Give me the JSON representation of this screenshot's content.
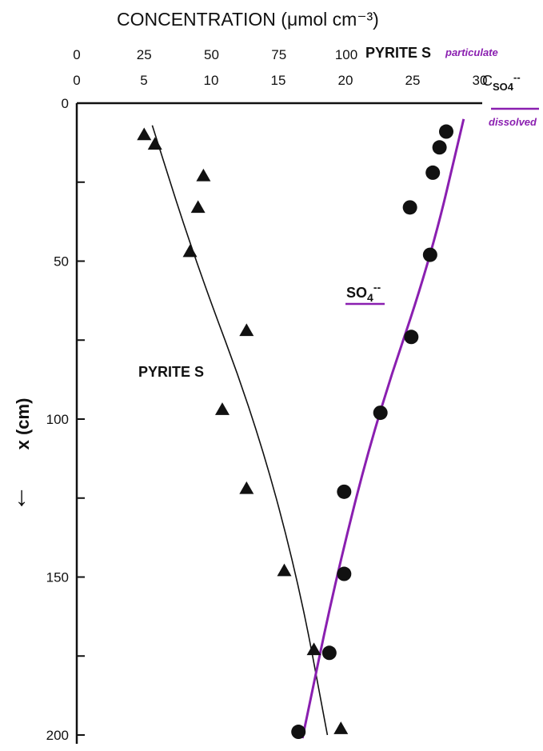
{
  "chart_data": {
    "type": "scatter",
    "title": "CONCENTRATION (μmol cm⁻³)",
    "ylabel": "x (cm)",
    "y_axis_arrow": "↓",
    "y_inverted": true,
    "ylim": [
      0,
      200
    ],
    "y_ticks": [
      "0",
      "50",
      "100",
      "150",
      "200"
    ],
    "y_tick_values": [
      0,
      50,
      100,
      150,
      200
    ],
    "top_axis_pyrite": {
      "label": "PYRITE S",
      "sublabel": "particulate",
      "ticks": [
        "0",
        "25",
        "50",
        "75",
        "100"
      ],
      "tick_values": [
        0,
        25,
        50,
        75,
        100
      ]
    },
    "top_axis_sulfate": {
      "label_main": "C",
      "label_sub": "SO",
      "label_sub_suffix": "4",
      "label_sup": "--",
      "sublabel": "dissolved",
      "ticks": [
        "0",
        "5",
        "10",
        "15",
        "20",
        "25",
        "30"
      ],
      "tick_values": [
        0,
        5,
        10,
        15,
        20,
        25,
        30
      ]
    },
    "series": [
      {
        "name": "PYRITE S",
        "marker": "triangle",
        "color": "#111111",
        "x_axis": "pyrite",
        "points": [
          {
            "x": 25,
            "y": 10
          },
          {
            "x": 29,
            "y": 13
          },
          {
            "x": 47,
            "y": 23
          },
          {
            "x": 45,
            "y": 33
          },
          {
            "x": 42,
            "y": 47
          },
          {
            "x": 63,
            "y": 72
          },
          {
            "x": 54,
            "y": 97
          },
          {
            "x": 63,
            "y": 122
          },
          {
            "x": 77,
            "y": 148
          },
          {
            "x": 88,
            "y": 173
          },
          {
            "x": 98,
            "y": 198
          }
        ],
        "fit": [
          {
            "x": 28,
            "y": 7
          },
          {
            "x": 44,
            "y": 50
          },
          {
            "x": 66,
            "y": 100
          },
          {
            "x": 82,
            "y": 150
          },
          {
            "x": 93,
            "y": 200
          }
        ]
      },
      {
        "name": "SO4--",
        "name_main": "SO",
        "name_sub": "4",
        "name_sup": "--",
        "marker": "circle",
        "color": "#111111",
        "fit_color": "#8a1fb0",
        "x_axis": "sulfate",
        "points": [
          {
            "x": 27.5,
            "y": 9
          },
          {
            "x": 27,
            "y": 14
          },
          {
            "x": 26.5,
            "y": 22
          },
          {
            "x": 24.8,
            "y": 33
          },
          {
            "x": 26.3,
            "y": 48
          },
          {
            "x": 24.9,
            "y": 74
          },
          {
            "x": 22.6,
            "y": 98
          },
          {
            "x": 19.9,
            "y": 123
          },
          {
            "x": 19.9,
            "y": 149
          },
          {
            "x": 18.8,
            "y": 174
          },
          {
            "x": 16.5,
            "y": 199
          }
        ],
        "fit": [
          {
            "x": 28.8,
            "y": 5
          },
          {
            "x": 26.3,
            "y": 50
          },
          {
            "x": 22.3,
            "y": 100
          },
          {
            "x": 19.3,
            "y": 150
          },
          {
            "x": 16.8,
            "y": 201
          }
        ]
      }
    ],
    "annotations": [
      {
        "text": "PYRITE S",
        "x": 50,
        "y": 85,
        "axis": "pyrite"
      }
    ]
  }
}
